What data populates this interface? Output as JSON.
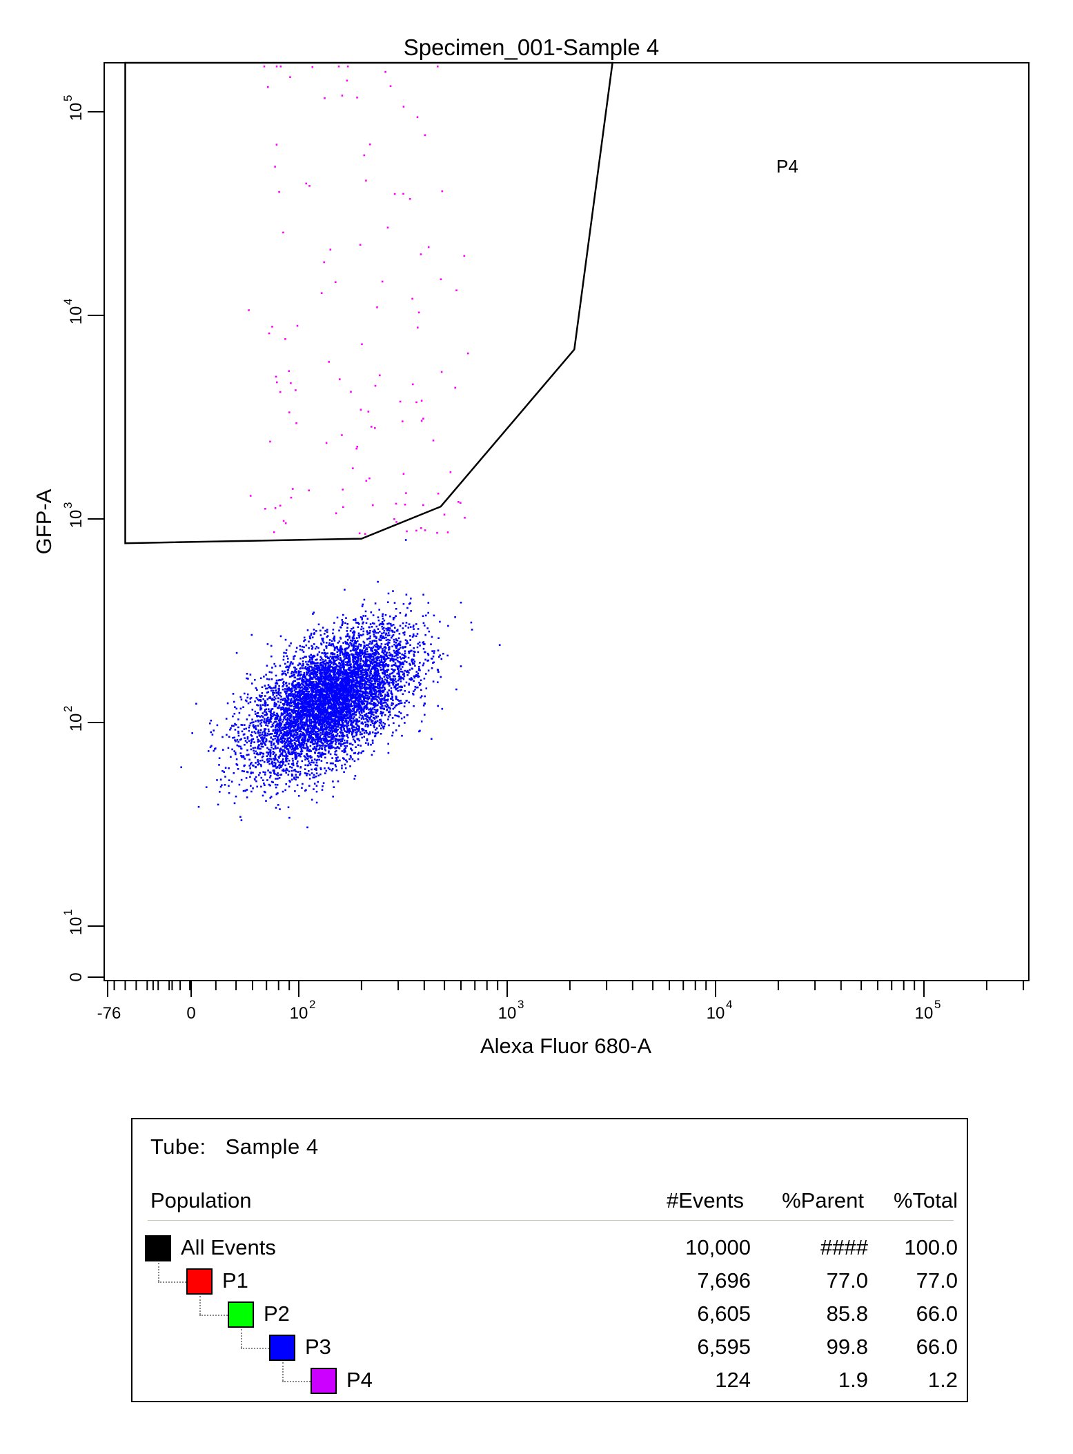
{
  "chart_data": {
    "type": "scatter",
    "title": "Specimen_001-Sample 4",
    "xlabel": "Alexa Fluor 680-A",
    "ylabel": "GFP-A",
    "x_scale": "biexponential",
    "y_scale": "log",
    "xlim": [
      -76,
      262144
    ],
    "ylim": [
      0,
      262144
    ],
    "x_ticks": [
      {
        "label": "-76",
        "exp": ""
      },
      {
        "label": "0",
        "exp": ""
      },
      {
        "label": "10",
        "exp": "2"
      },
      {
        "label": "10",
        "exp": "3"
      },
      {
        "label": "10",
        "exp": "4"
      },
      {
        "label": "10",
        "exp": "5"
      }
    ],
    "y_ticks": [
      {
        "label": "0",
        "exp": ""
      },
      {
        "label": "10",
        "exp": "1"
      },
      {
        "label": "10",
        "exp": "2"
      },
      {
        "label": "10",
        "exp": "3"
      },
      {
        "label": "10",
        "exp": "4"
      },
      {
        "label": "10",
        "exp": "5"
      }
    ],
    "gate": {
      "name": "P4",
      "vertices": [
        [
          -60,
          262144
        ],
        [
          -60,
          760
        ],
        [
          200,
          800
        ],
        [
          480,
          1150
        ],
        [
          2100,
          6800
        ],
        [
          3200,
          262144
        ]
      ]
    },
    "series": [
      {
        "name": "P3",
        "color": "#0000ff",
        "count": 6595,
        "center": [
          140,
          130
        ],
        "spread_log10": [
          0.19,
          0.17
        ],
        "correlation": 0.55
      },
      {
        "name": "P4",
        "color": "#ff00ff",
        "count": 124,
        "x_range": [
          60,
          600
        ],
        "y_range": [
          850,
          250000
        ]
      }
    ],
    "grid": false,
    "legend": "none"
  },
  "stats": {
    "tube_label": "Tube:",
    "tube_value": "Sample 4",
    "headers": {
      "population": "Population",
      "events": "#Events",
      "parent": "%Parent",
      "total": "%Total"
    },
    "rows": [
      {
        "name": "All Events",
        "color": "#000000",
        "events": "10,000",
        "parent": "####",
        "total": "100.0"
      },
      {
        "name": "P1",
        "color": "#ff0000",
        "events": "7,696",
        "parent": "77.0",
        "total": "77.0"
      },
      {
        "name": "P2",
        "color": "#00ff00",
        "events": "6,605",
        "parent": "85.8",
        "total": "66.0"
      },
      {
        "name": "P3",
        "color": "#0000ff",
        "events": "6,595",
        "parent": "99.8",
        "total": "66.0"
      },
      {
        "name": "P4",
        "color": "#cc00ff",
        "events": "124",
        "parent": "1.9",
        "total": "1.2"
      }
    ]
  }
}
